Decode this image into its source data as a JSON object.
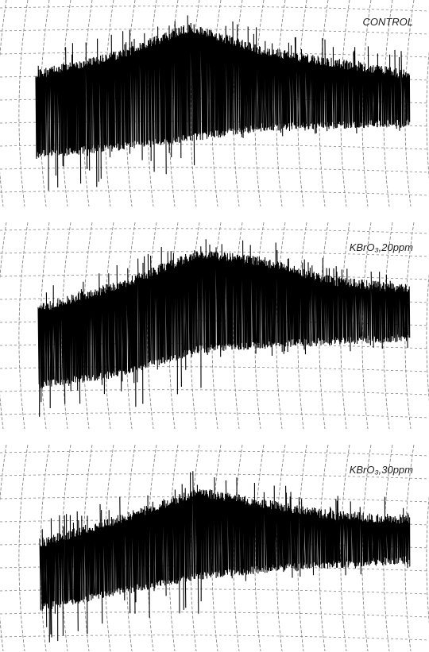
{
  "panels": [
    {
      "label": "CONTROL"
    },
    {
      "label": "KBrO₃,20ppm"
    },
    {
      "label": "KBrO₃,30ppm"
    }
  ]
}
